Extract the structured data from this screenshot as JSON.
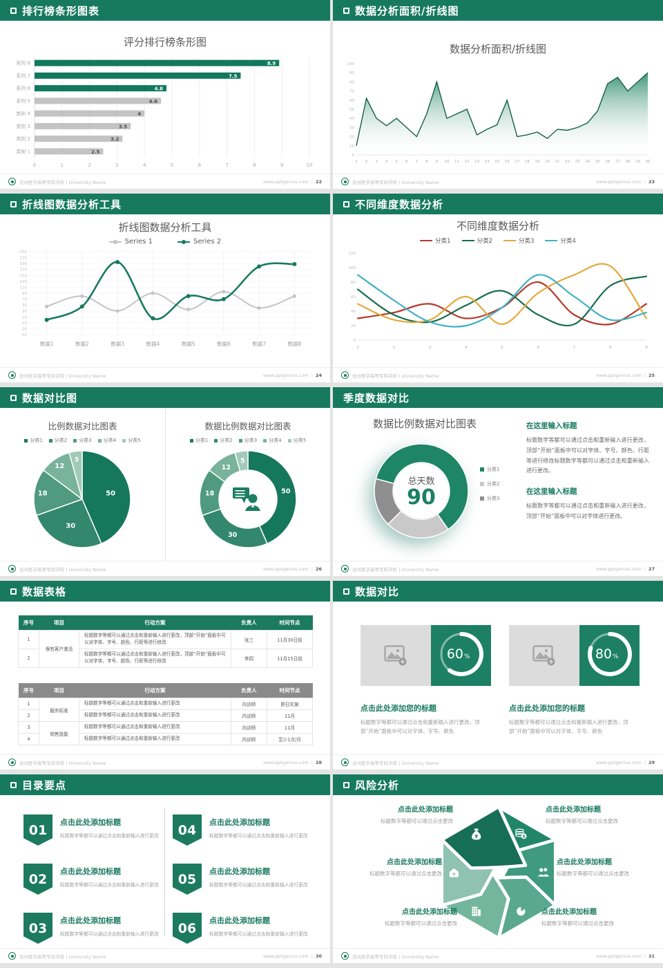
{
  "footer": {
    "school": "沧州医学高等专科学校 | University Name",
    "site": "www.pptgenius.com"
  },
  "slides": {
    "s1": {
      "header": "排行榜条形图表",
      "page": "22"
    },
    "s2": {
      "header": "数据分析面积/折线图",
      "page": "23"
    },
    "s3": {
      "header": "折线图数据分析工具",
      "page": "24"
    },
    "s4": {
      "header": "不同维度数据分析",
      "page": "25"
    },
    "s5": {
      "header": "数据对比图",
      "page": "26"
    },
    "s6": {
      "header": "季度数据对比",
      "page": "27",
      "blocks": [
        {
          "heading": "在这里输入标题",
          "body": "标题数字等都可以通过点击和重新输入进行更改，顶部“开始”面板中可以对字体、字号、颜色、行距等进行修改标题数字等都可以通过点击和重新输入进行更改。"
        },
        {
          "heading": "在这里输入标题",
          "body": "标题数字等都可以通过点击和重新输入进行更改，顶部“开始”面板中可以对字体进行更改。"
        }
      ]
    },
    "s7": {
      "header": "数据表格",
      "page": "28",
      "table1": {
        "headers": [
          "序号",
          "项目",
          "行动方案",
          "负责人",
          "时间节点"
        ],
        "project": "保有客户激活",
        "rows": [
          {
            "no": "1",
            "plan": "标题数字等都可以通过点击和重新输入进行更改，顶部“开始”面板中可以对字体、字号、颜色、行距等进行修改",
            "owner": "张三",
            "time": "11月30日前"
          },
          {
            "no": "2",
            "plan": "标题数字等都可以通过点击和重新输入进行更改，顶部“开始”面板中可以对字体、字号、颜色、行距等进行修改",
            "owner": "李四",
            "time": "11月15日前"
          }
        ]
      },
      "table2": {
        "headers": [
          "序号",
          "项目",
          "行动方案",
          "负责人",
          "时间节点"
        ],
        "projects": [
          "服务标准",
          "销售技能"
        ],
        "rows": [
          {
            "no": "1",
            "plan": "标题数字等都可以通过点击和重新输入进行更改",
            "owner": "内训师",
            "time": "即日实施"
          },
          {
            "no": "2",
            "plan": "标题数字等都可以通过点击和重新输入进行更改",
            "owner": "内训师",
            "time": "11月"
          },
          {
            "no": "3",
            "plan": "标题数字等都可以通过点击和重新输入进行更改",
            "owner": "内训师",
            "time": "11月"
          },
          {
            "no": "4",
            "plan": "标题数字等都可以通过点击和重新输入进行更改",
            "owner": "内训师",
            "time": "至少1次/月"
          }
        ]
      }
    },
    "s8": {
      "header": "数据对比",
      "page": "29",
      "panels": [
        {
          "heading": "点击此处添加您的标题",
          "body": "标题数字等都可以通过点击和重新输入进行更改，顶部“开始”面板中可以对字体、字号、颜色"
        },
        {
          "heading": "点击此处添加您的标题",
          "body": "标题数字等都可以通过点击和重新输入进行更改，顶部“开始”面板中可以对字体、字号、颜色"
        }
      ]
    },
    "s9": {
      "header": "目录要点",
      "page": "30",
      "items": [
        {
          "num": "01",
          "heading": "点击此处添加标题",
          "sub": "标题数字等都可以通过点击和重新输入进行更改"
        },
        {
          "num": "04",
          "heading": "点击此处添加标题",
          "sub": "标题数字等都可以通过点击和重新输入进行更改"
        },
        {
          "num": "02",
          "heading": "点击此处添加标题",
          "sub": "标题数字等都可以通过点击和重新输入进行更改"
        },
        {
          "num": "05",
          "heading": "点击此处添加标题",
          "sub": "标题数字等都可以通过点击和重新输入进行更改"
        },
        {
          "num": "03",
          "heading": "点击此处添加标题",
          "sub": "标题数字等都可以通过点击和重新输入进行更改"
        },
        {
          "num": "06",
          "heading": "点击此处添加标题",
          "sub": "标题数字等都可以通过点击和重新输入进行更改"
        }
      ]
    },
    "s10": {
      "header": "风险分析",
      "page": "31",
      "labels": [
        {
          "title": "点击此处添加标题",
          "sub": "标题数字等都可以通过点击更改"
        },
        {
          "title": "点击此处添加标题",
          "sub": "标题数字等都可以通过点击更改"
        },
        {
          "title": "点击此处添加标题",
          "sub": "标题数字等都可以通过点击更改"
        },
        {
          "title": "点击此处添加标题",
          "sub": "标题数字等都可以通过点击更改"
        },
        {
          "title": "点击此处添加标题",
          "sub": "标题数字等都可以通过点击更改"
        },
        {
          "title": "点击此处添加标题",
          "sub": "标题数字等都可以通过点击更改"
        }
      ],
      "petal_colors": [
        "#218667",
        "#3f9a7e",
        "#5aa98e",
        "#74b59d",
        "#8fc2b0",
        "#176e56"
      ],
      "petal_icons": [
        "coins",
        "people",
        "pie",
        "building",
        "cash-hat",
        "moneybag"
      ]
    }
  },
  "chart_data": [
    {
      "id": "ranking_bar",
      "type": "bar",
      "orientation": "horizontal",
      "title": "评分排行榜条形图",
      "categories": [
        "系列 8",
        "系列 7",
        "系列 6",
        "系列 5",
        "类别 4",
        "类别 3",
        "类别 2",
        "类别 1"
      ],
      "values": [
        8.9,
        7.5,
        4.8,
        4.6,
        4,
        3.5,
        3.2,
        2.5
      ],
      "highlight_count": 3,
      "highlight_color": "#11795d",
      "normal_color": "#c3c3c3",
      "xlim": [
        0,
        10
      ],
      "xticks": [
        0,
        1,
        2,
        3,
        4,
        5,
        6,
        7,
        8,
        9,
        10
      ],
      "grid": true
    },
    {
      "id": "area_line",
      "type": "area",
      "title": "数据分析面积/折线图",
      "x": [
        1,
        2,
        3,
        4,
        5,
        6,
        7,
        8,
        9,
        10,
        11,
        12,
        13,
        14,
        15,
        16,
        17,
        18,
        19,
        20,
        21,
        22,
        23,
        24,
        25,
        26,
        27,
        28,
        29,
        30
      ],
      "values": [
        10,
        62,
        40,
        32,
        40,
        30,
        20,
        45,
        80,
        40,
        45,
        50,
        22,
        28,
        33,
        60,
        20,
        22,
        25,
        18,
        28,
        27,
        30,
        35,
        48,
        78,
        85,
        70,
        80,
        90
      ],
      "ylim": [
        0,
        100
      ],
      "yticks": [
        0,
        10,
        20,
        30,
        40,
        50,
        60,
        70,
        80,
        90,
        100
      ],
      "line_color": "#135e47",
      "fill_color": "#2f8d6e"
    },
    {
      "id": "tool_lines",
      "type": "line",
      "title": "折线图数据分析工具",
      "categories": [
        "数据1",
        "数据2",
        "数据3",
        "数据4",
        "数据5",
        "数据6",
        "数据7",
        "数据8"
      ],
      "series": [
        {
          "name": "Series 1",
          "color": "#c4c4c4",
          "values": [
            45,
            80,
            30,
            90,
            35,
            95,
            40,
            80
          ]
        },
        {
          "name": "Series 2",
          "color": "#177a5e",
          "values": [
            0,
            45,
            195,
            5,
            80,
            70,
            180,
            188
          ]
        }
      ],
      "ylim": [
        -50,
        230
      ],
      "ytick_step": 20,
      "grid": true,
      "legend_position": "top"
    },
    {
      "id": "dims_lines",
      "type": "line",
      "title": "不同维度数据分析",
      "x": [
        1,
        2,
        3,
        4,
        5,
        6,
        7,
        8,
        9
      ],
      "series": [
        {
          "name": "分类1",
          "color": "#b5382a",
          "values": [
            30,
            38,
            50,
            30,
            45,
            80,
            35,
            22,
            50
          ]
        },
        {
          "name": "分类2",
          "color": "#156b4f",
          "values": [
            70,
            35,
            25,
            48,
            68,
            35,
            22,
            75,
            88
          ]
        },
        {
          "name": "分类3",
          "color": "#e2a93b",
          "values": [
            50,
            28,
            28,
            60,
            22,
            65,
            90,
            102,
            30
          ]
        },
        {
          "name": "分类4",
          "color": "#3fb0c4",
          "values": [
            90,
            55,
            25,
            20,
            45,
            90,
            60,
            28,
            38
          ]
        }
      ],
      "ylim": [
        0,
        120
      ],
      "ytick_step": 20,
      "grid": false,
      "legend_position": "top"
    },
    {
      "id": "pie_compare",
      "type": "pie",
      "title": "比例数据对比图表",
      "labels": [
        "分类1",
        "分类2",
        "分类3",
        "分类4",
        "分类5"
      ],
      "values": [
        50,
        30,
        18,
        12,
        5
      ],
      "colors": [
        "#15775c",
        "#33876c",
        "#4f9a80",
        "#79b29d",
        "#a2c9ba"
      ]
    },
    {
      "id": "donut_compare",
      "type": "donut",
      "title": "数据比例数据对比图表",
      "labels": [
        "分类1",
        "分类2",
        "分类3",
        "分类4",
        "分类5"
      ],
      "values": [
        50,
        30,
        18,
        12,
        5
      ],
      "colors": [
        "#15775c",
        "#33876c",
        "#4f9a80",
        "#79b29d",
        "#a2c9ba"
      ],
      "center_icon": "person-speech-icon"
    },
    {
      "id": "quarter_donut",
      "type": "donut",
      "title": "数据比例数据对比图表",
      "center_label": "总天数",
      "center_value": "90",
      "labels": [
        "分类1",
        "分类2",
        "分类3"
      ],
      "values": [
        55,
        20,
        15
      ],
      "colors": [
        "#1e8565",
        "#c9c9c9",
        "#8f8f8f"
      ],
      "start_angle": 285
    },
    {
      "id": "progress_left",
      "type": "progress",
      "value": 60,
      "unit": "%"
    },
    {
      "id": "progress_right",
      "type": "progress",
      "value": 80,
      "unit": "%"
    }
  ]
}
